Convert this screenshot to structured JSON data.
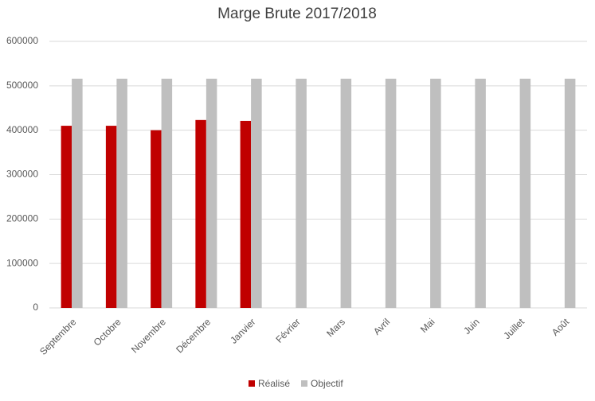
{
  "chart_data": {
    "type": "bar",
    "title": "Marge Brute 2017/2018",
    "categories": [
      "Septembre",
      "Octobre",
      "Novembre",
      "Décembre",
      "Janvier",
      "Février",
      "Mars",
      "Avril",
      "Mai",
      "Juin",
      "Juillet",
      "Août"
    ],
    "series": [
      {
        "name": "Réalisé",
        "color": "#c00000",
        "values": [
          410000,
          410000,
          400000,
          423000,
          421000,
          null,
          null,
          null,
          null,
          null,
          null,
          null
        ]
      },
      {
        "name": "Objectif",
        "color": "#bfbfbf",
        "values": [
          516000,
          516000,
          516000,
          516000,
          516000,
          516000,
          516000,
          516000,
          516000,
          516000,
          516000,
          516000
        ]
      }
    ],
    "ylim": [
      0,
      600000
    ],
    "yticks": [
      0,
      100000,
      200000,
      300000,
      400000,
      500000,
      600000
    ],
    "grid": true,
    "legend": "bottom"
  }
}
